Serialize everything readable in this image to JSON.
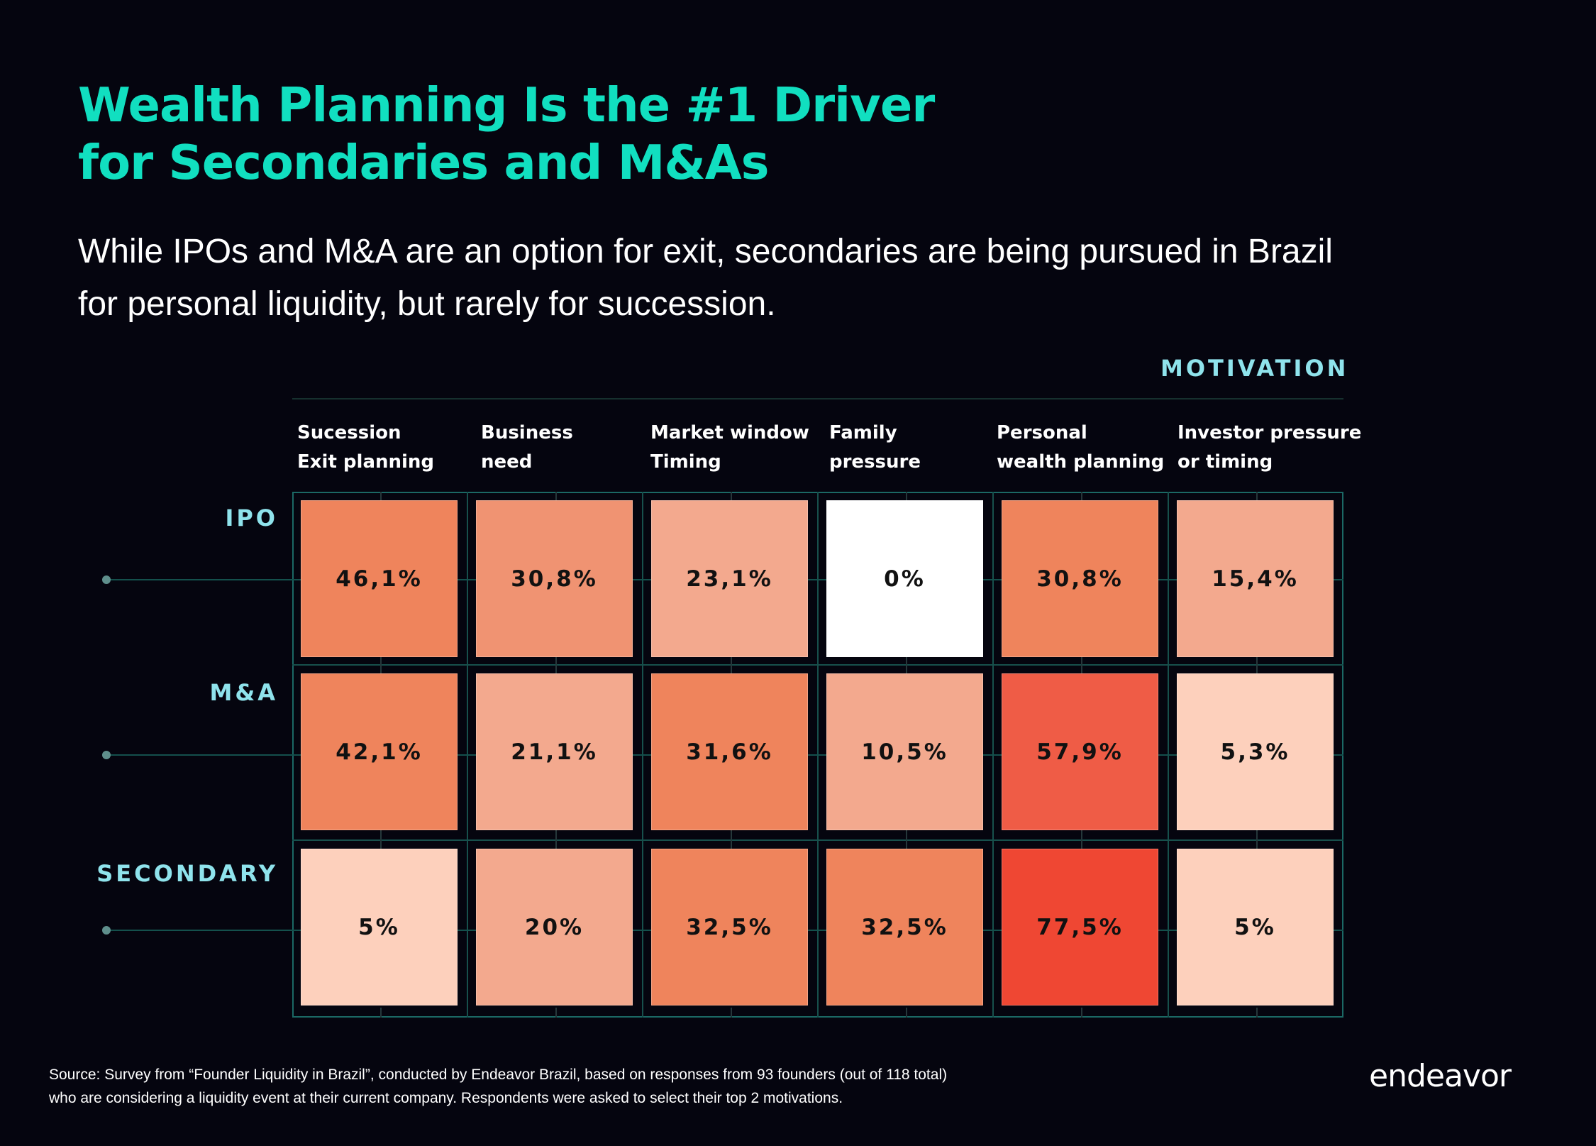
{
  "header": {
    "title_line1": "Wealth Planning Is the #1 Driver",
    "title_line2": "for Secondaries and M&As",
    "subtitle_line1": "While IPOs and M&A are an option for exit, secondaries are being pursued in Brazil",
    "subtitle_line2": "for personal liquidity, but rarely for succession."
  },
  "chart_data": {
    "type": "heatmap",
    "x_axis_label": "MOTIVATION",
    "columns": [
      [
        "Sucession",
        "Exit planning"
      ],
      [
        "Business",
        "need"
      ],
      [
        "Market window",
        "Timing"
      ],
      [
        "Family",
        "pressure"
      ],
      [
        "Personal",
        "wealth planning"
      ],
      [
        "Investor pressure",
        "or timing"
      ]
    ],
    "rows": [
      "IPO",
      "M&A",
      "SECONDARY"
    ],
    "values": [
      [
        46.1,
        30.8,
        23.1,
        0,
        30.8,
        15.4
      ],
      [
        42.1,
        21.1,
        31.6,
        10.5,
        57.9,
        5.3
      ],
      [
        5,
        20,
        32.5,
        32.5,
        77.5,
        5
      ]
    ],
    "labels": [
      [
        "46,1%",
        "30,8%",
        "23,1%",
        "0%",
        "30,8%",
        "15,4%"
      ],
      [
        "42,1%",
        "21,1%",
        "31,6%",
        "10,5%",
        "57,9%",
        "5,3%"
      ],
      [
        "5%",
        "20%",
        "32,5%",
        "32,5%",
        "77,5%",
        "5%"
      ]
    ],
    "colors": [
      [
        "#ef845c",
        "#f09372",
        "#f3a98e",
        "#ffffff",
        "#ef845c",
        "#f3a98e"
      ],
      [
        "#ef845c",
        "#f3a98e",
        "#ef845c",
        "#f3a98e",
        "#ef5c46",
        "#fdd0bc"
      ],
      [
        "#fdd0bc",
        "#f3a98e",
        "#ef845c",
        "#ef845c",
        "#ef4733",
        "#fdd0bc"
      ]
    ]
  },
  "footer": {
    "source_line1": "Source:  Survey from “Founder Liquidity in Brazil”, conducted by Endeavor Brazil, based on responses from 93 founders (out of 118 total)",
    "source_line2": "who are considering a liquidity event at their current company. Respondents were asked to select their top 2 motivations.",
    "logo": "endeavor"
  }
}
